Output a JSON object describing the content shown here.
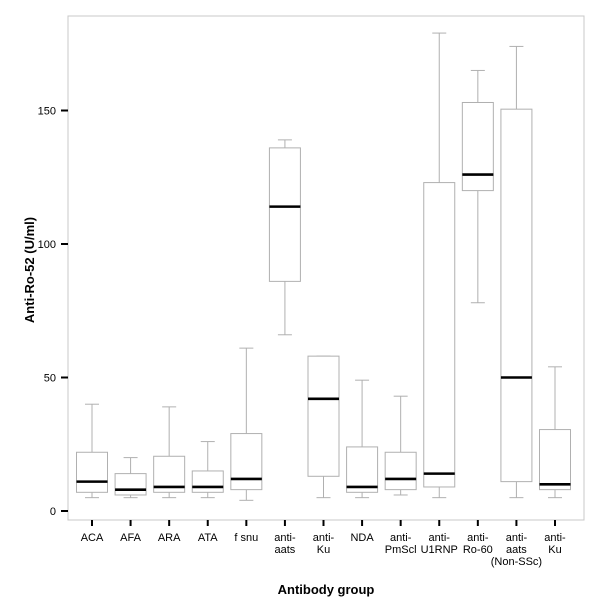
{
  "chart_data": {
    "type": "boxplot",
    "title": "",
    "xlabel": "Antibody group",
    "ylabel": "Anti-Ro-52 (U/ml)",
    "ylim": [
      0,
      185
    ],
    "yticks": [
      0,
      50,
      100,
      150
    ],
    "grid": false,
    "colors": {
      "box_stroke": "#b0b0b0",
      "median": "#000000",
      "axis": "#000000"
    },
    "categories": [
      {
        "label": [
          "ACA"
        ],
        "min": 5,
        "q1": 7,
        "median": 11,
        "q3": 22,
        "max": 40
      },
      {
        "label": [
          "AFA"
        ],
        "min": 5,
        "q1": 6,
        "median": 8,
        "q3": 14,
        "max": 20
      },
      {
        "label": [
          "ARA"
        ],
        "min": 5,
        "q1": 7,
        "median": 9,
        "q3": 20.5,
        "max": 39
      },
      {
        "label": [
          "ATA"
        ],
        "min": 5,
        "q1": 7,
        "median": 9,
        "q3": 15,
        "max": 26
      },
      {
        "label": [
          "f snu"
        ],
        "min": 4,
        "q1": 8,
        "median": 12,
        "q3": 29,
        "max": 61
      },
      {
        "label": [
          "anti-",
          "aats"
        ],
        "min": 66,
        "q1": 86,
        "median": 114,
        "q3": 136,
        "max": 139
      },
      {
        "label": [
          "anti-",
          "Ku"
        ],
        "min": 5,
        "q1": 13,
        "median": 42,
        "q3": 58,
        "max": 58
      },
      {
        "label": [
          "NDA"
        ],
        "min": 5,
        "q1": 7,
        "median": 9,
        "q3": 24,
        "max": 49
      },
      {
        "label": [
          "anti-",
          "PmScl"
        ],
        "min": 6,
        "q1": 8,
        "median": 12,
        "q3": 22,
        "max": 43
      },
      {
        "label": [
          "anti-",
          "U1RNP"
        ],
        "min": 5,
        "q1": 9,
        "median": 14,
        "q3": 123,
        "max": 179
      },
      {
        "label": [
          "anti-",
          "Ro-60"
        ],
        "min": 78,
        "q1": 120,
        "median": 126,
        "q3": 153,
        "max": 165
      },
      {
        "label": [
          "anti-",
          "aats",
          "(Non-SSc)"
        ],
        "min": 5,
        "q1": 11,
        "median": 50,
        "q3": 150.5,
        "max": 174
      },
      {
        "label": [
          "anti-",
          "Ku"
        ],
        "min": 5,
        "q1": 8,
        "median": 10,
        "q3": 30.5,
        "max": 54
      }
    ]
  }
}
